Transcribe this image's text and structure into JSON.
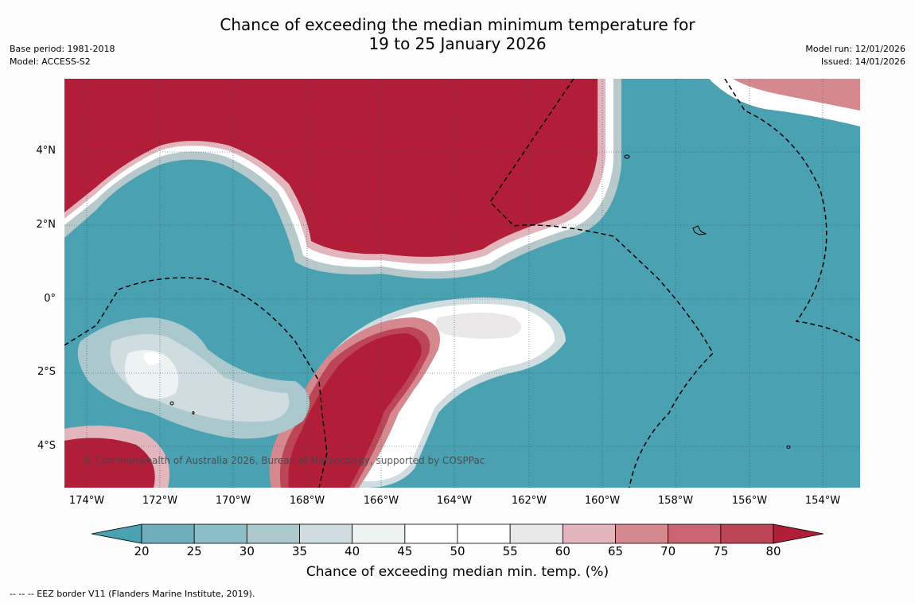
{
  "title": {
    "line1": "Chance of exceeding the median minimum temperature for",
    "line2": "19 to 25 January 2026"
  },
  "meta_left": {
    "base_period": "Base period: 1981-2018",
    "model": "Model: ACCESS-S2"
  },
  "meta_right": {
    "model_run": "Model run: 12/01/2026",
    "issued": "Issued: 14/01/2026"
  },
  "map": {
    "lat_labels": [
      "4°N",
      "2°N",
      "0°",
      "2°S",
      "4°S"
    ],
    "lon_labels": [
      "174°W",
      "172°W",
      "170°W",
      "168°W",
      "166°W",
      "164°W",
      "162°W",
      "160°W",
      "158°W",
      "156°W",
      "154°W"
    ],
    "copyright": "© Commonwealth of Australia 2026, Bureau of Meteorology, supported by COSPPac"
  },
  "colorbar": {
    "ticks": [
      "20",
      "25",
      "30",
      "35",
      "40",
      "45",
      "50",
      "55",
      "60",
      "65",
      "70",
      "75",
      "80"
    ],
    "colors": [
      "#4aa1b2",
      "#6faebb",
      "#8dbdc6",
      "#abc9cd",
      "#cfdde0",
      "#edf2f3",
      "#ffffff",
      "#ffffff",
      "#ebe8e9",
      "#e2b6bc",
      "#d5898f",
      "#c96570",
      "#bc4556",
      "#b21e38"
    ],
    "label": "Chance of exceeding median min. temp. (%)"
  },
  "footnote": "--  --  -- EEZ border V11 (Flanders Marine Institute, 2019)."
}
